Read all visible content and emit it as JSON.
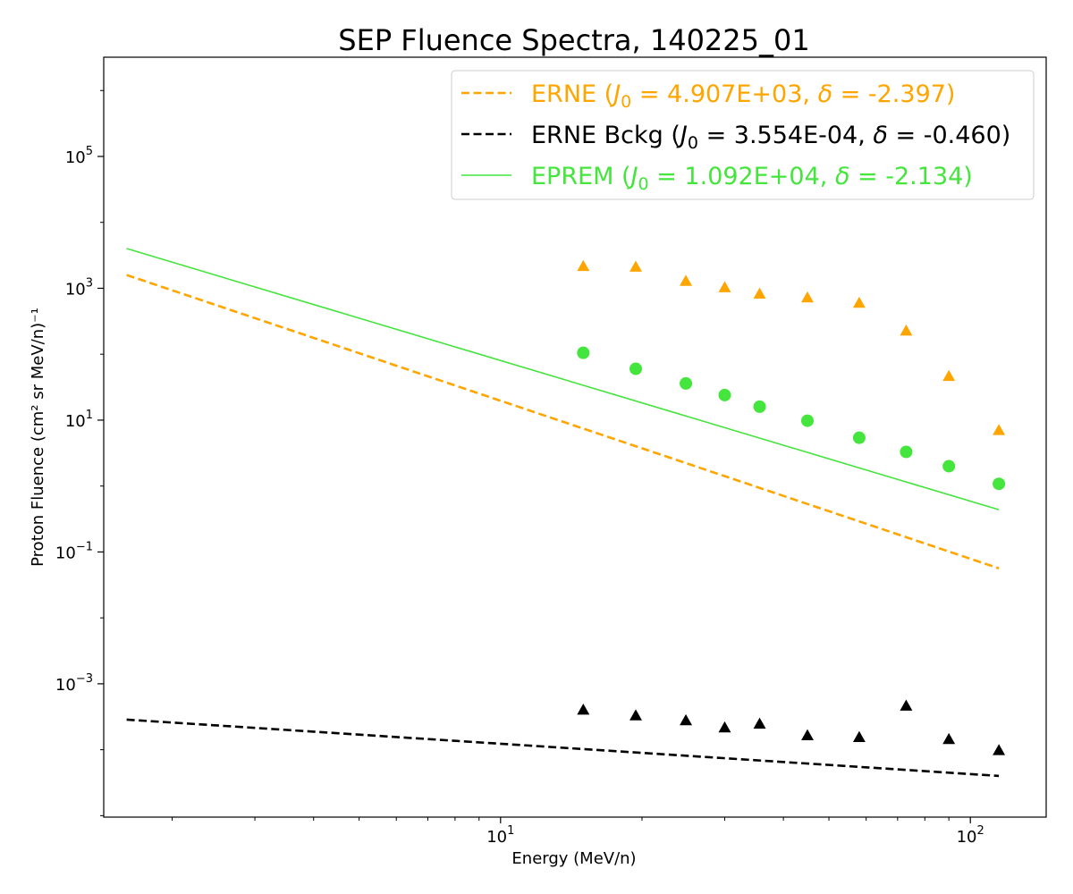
{
  "chart_data": {
    "type": "scatter",
    "title": "SEP Fluence Spectra, 140225_01",
    "xlabel": "Energy (MeV/n)",
    "ylabel": "Proton Fluence (cm² sr MeV/n)⁻¹",
    "xscale": "log",
    "yscale": "log",
    "xlim": [
      1.43,
      145
    ],
    "ylim": [
      9.5e-06,
      3200000
    ],
    "x_ticks": [
      {
        "value": 10,
        "base": "10",
        "exp": "1"
      },
      {
        "value": 100,
        "base": "10",
        "exp": "2"
      }
    ],
    "y_ticks": [
      {
        "value": 0.001,
        "base": "10",
        "exp": "−3"
      },
      {
        "value": 0.1,
        "base": "10",
        "exp": "−1"
      },
      {
        "value": 10,
        "base": "10",
        "exp": "1"
      },
      {
        "value": 1000,
        "base": "10",
        "exp": "3"
      },
      {
        "value": 100000,
        "base": "10",
        "exp": "5"
      }
    ],
    "grid": false,
    "legend_position": "top-right",
    "series": [
      {
        "name": "ERNE",
        "kind": "points",
        "marker": "triangle",
        "color": "#ffa500",
        "x": [
          15.0,
          19.4,
          24.8,
          30.0,
          35.6,
          45.0,
          58.0,
          73.0,
          90.0,
          115.0
        ],
        "y": [
          2100,
          2050,
          1250,
          1000,
          800,
          700,
          580,
          220,
          45,
          6.8
        ]
      },
      {
        "name": "ERNE Bckg",
        "kind": "points",
        "marker": "triangle",
        "color": "#000000",
        "x": [
          15.0,
          19.4,
          24.8,
          30.0,
          35.6,
          45.0,
          58.0,
          73.0,
          90.0,
          115.0
        ],
        "y": [
          0.00039,
          0.00032,
          0.00027,
          0.00021,
          0.00024,
          0.00016,
          0.00015,
          0.00045,
          0.00014,
          9.5e-05
        ]
      },
      {
        "name": "EPREM",
        "kind": "points",
        "marker": "circle",
        "color": "#44e53c",
        "x": [
          15.0,
          19.4,
          24.8,
          30.0,
          35.6,
          45.0,
          58.0,
          73.0,
          90.0,
          115.0
        ],
        "y": [
          105,
          60,
          36,
          24,
          16,
          9.8,
          5.4,
          3.3,
          2.0,
          1.08
        ]
      }
    ],
    "fits": [
      {
        "name": "ERNE",
        "legend": {
          "prefix": "ERNE (",
          "j0": "J",
          "j0_sub": "0",
          "eq1": " = 4.907E+03, ",
          "delta": "δ",
          "eq2": " = -2.397)"
        },
        "line_style": "dashed",
        "color": "#ffa500",
        "J0": 4907,
        "delta": -2.397,
        "x_range": [
          1.6,
          115
        ]
      },
      {
        "name": "ERNE Bckg",
        "legend": {
          "prefix": "ERNE Bckg (",
          "j0": "J",
          "j0_sub": "0",
          "eq1": " = 3.554E-04, ",
          "delta": "δ",
          "eq2": " = -0.460)"
        },
        "line_style": "dashed",
        "color": "#000000",
        "J0": 0.0003554,
        "delta": -0.46,
        "x_range": [
          1.6,
          115
        ]
      },
      {
        "name": "EPREM",
        "legend": {
          "prefix": "EPREM (",
          "j0": "J",
          "j0_sub": "0",
          "eq1": " = 1.092E+04, ",
          "delta": "δ",
          "eq2": " = -2.134)"
        },
        "line_style": "solid",
        "color": "#44e53c",
        "J0": 10920,
        "delta": -2.134,
        "x_range": [
          1.6,
          115
        ]
      }
    ]
  }
}
